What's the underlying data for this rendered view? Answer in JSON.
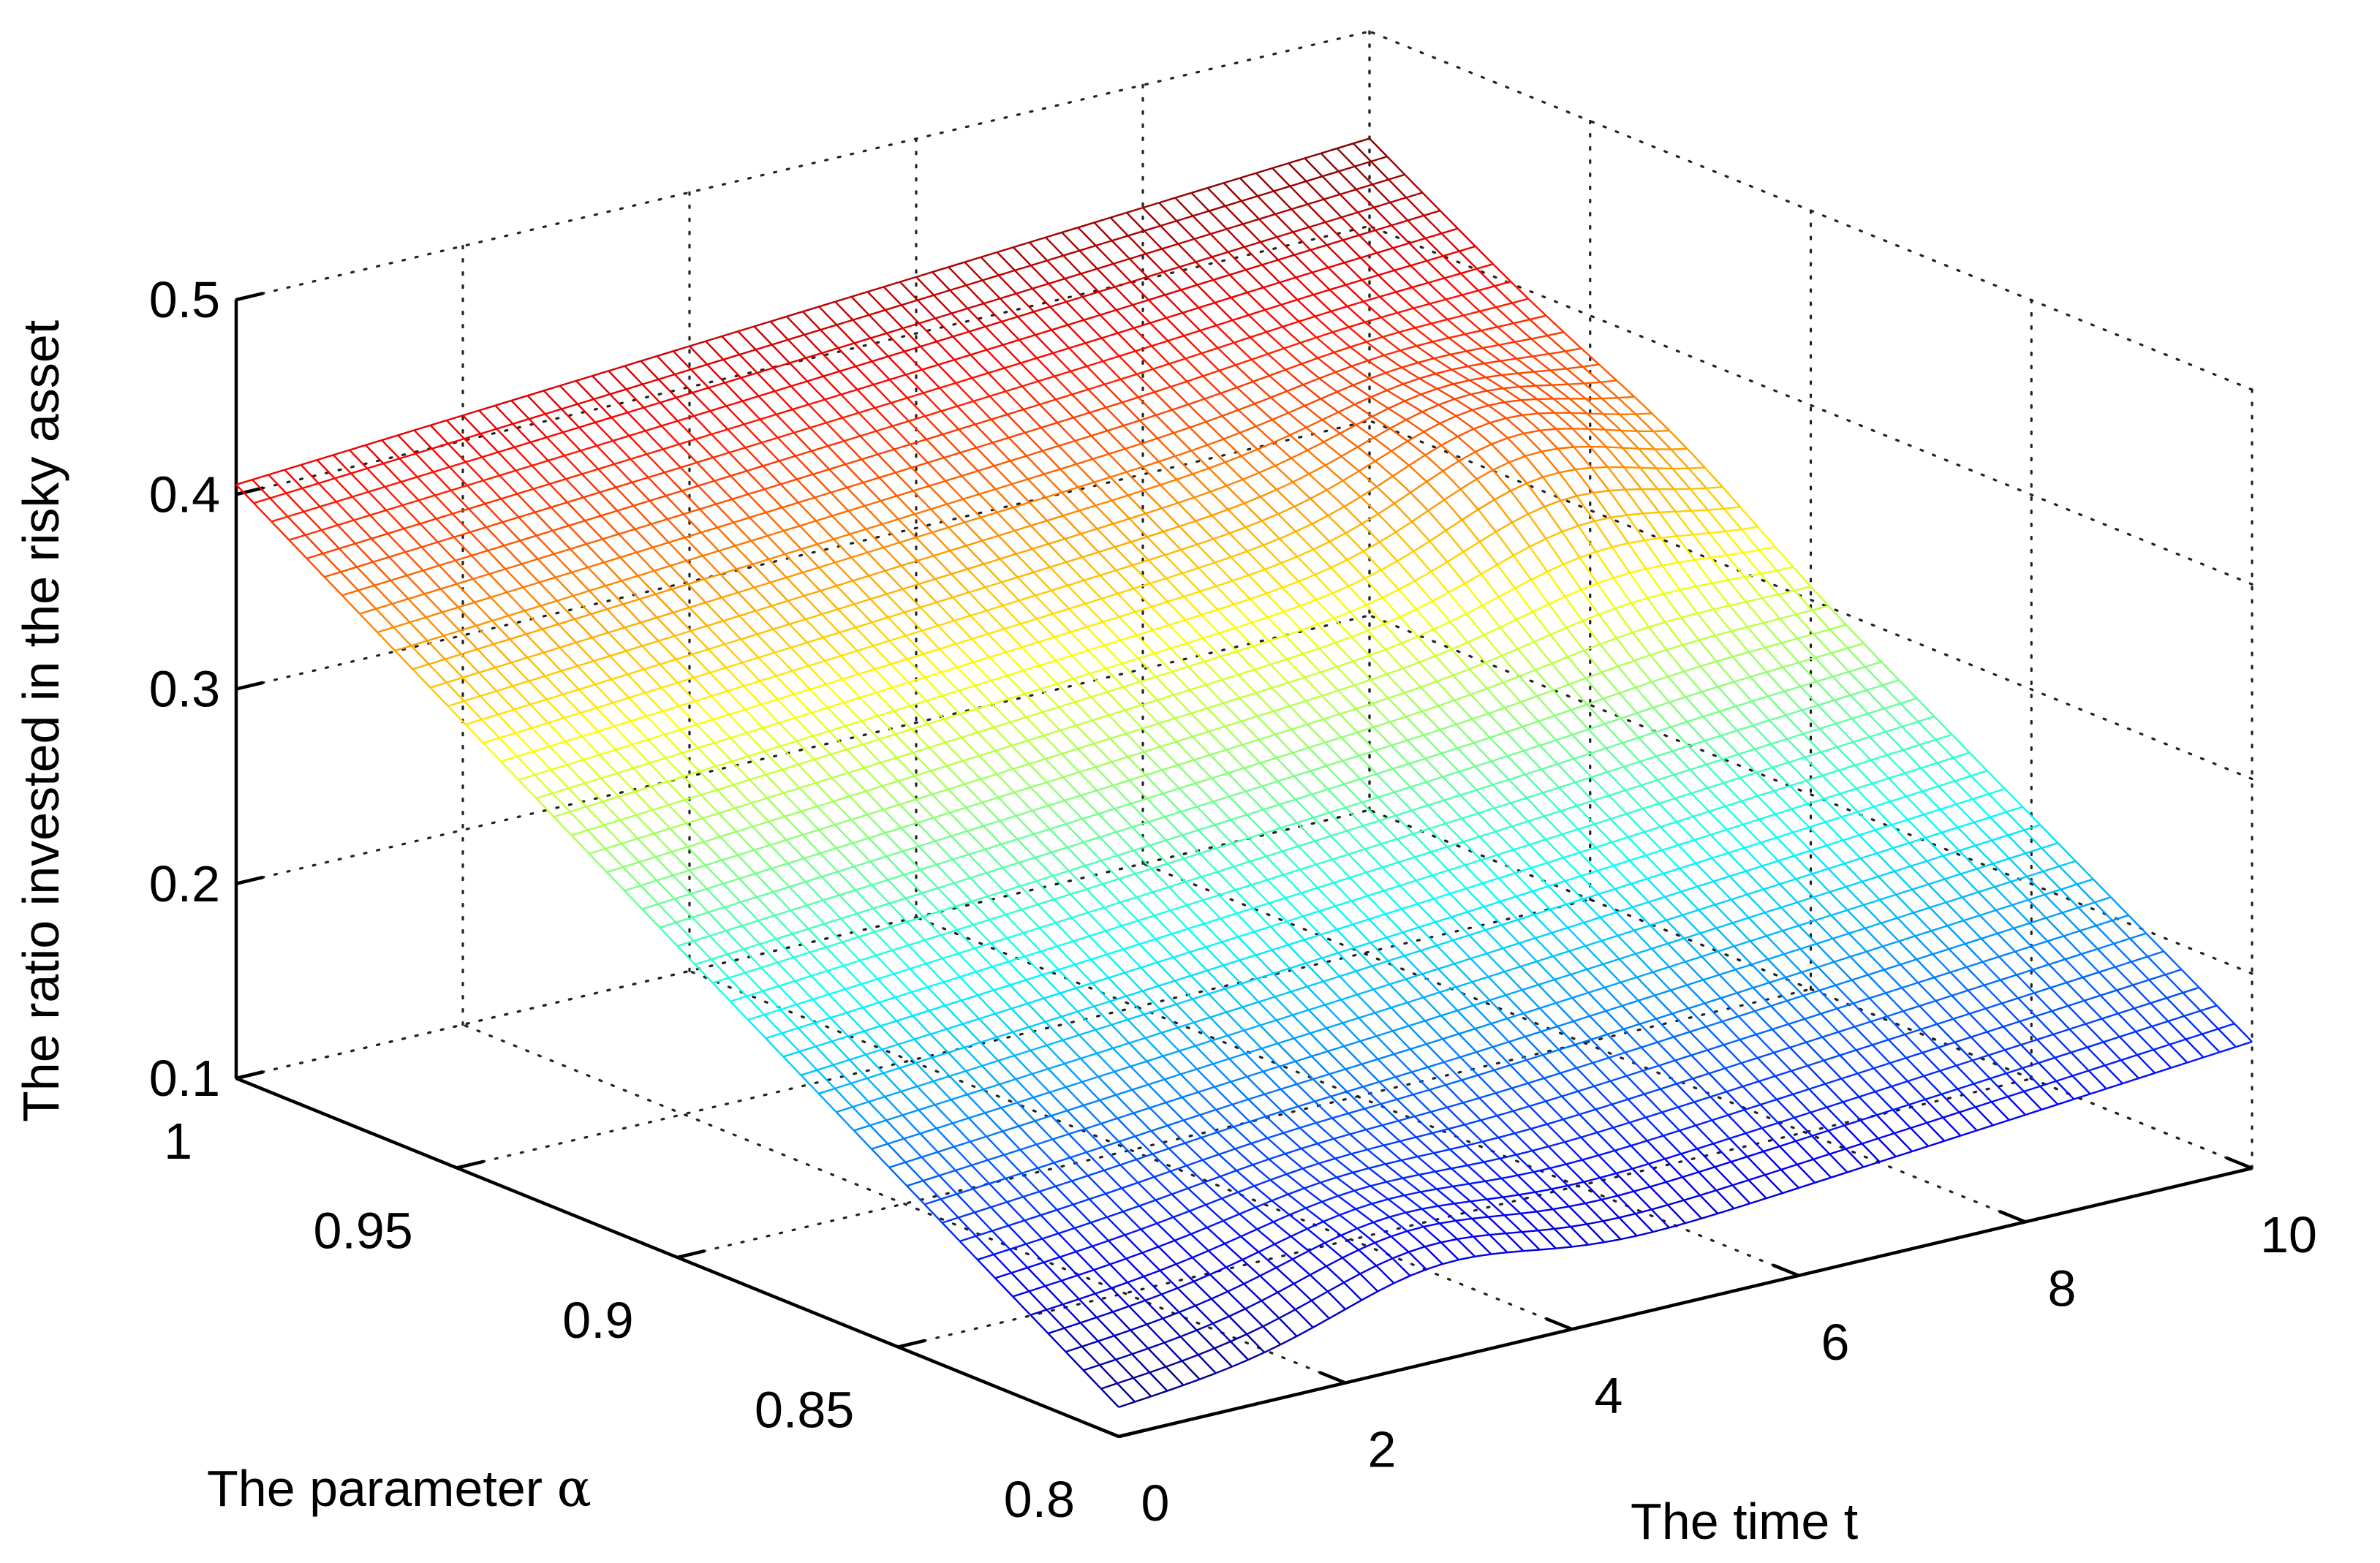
{
  "chart_data": {
    "type": "surface-mesh",
    "title": "",
    "xlabel": "The time t",
    "ylabel_prefix": "The parameter ",
    "ylabel_symbol": "α",
    "zlabel": "The ratio invested in the risky asset",
    "x_ticks": [
      "0",
      "2",
      "4",
      "6",
      "8",
      "10"
    ],
    "y_ticks": [
      "0.8",
      "0.85",
      "0.9",
      "0.95",
      "1"
    ],
    "z_ticks": [
      "0.1",
      "0.2",
      "0.3",
      "0.4",
      "0.5"
    ],
    "xlim": [
      0,
      10
    ],
    "ylim": [
      0.8,
      1
    ],
    "zlim": [
      0.1,
      0.5
    ],
    "grid": true,
    "colormap": "jet",
    "surface": {
      "t": [
        0,
        10
      ],
      "alpha": [
        0.8,
        1
      ],
      "corners": {
        "t0_alpha0.8": 0.115,
        "t10_alpha0.8": 0.165,
        "t0_alpha1": 0.405,
        "t10_alpha1": 0.445
      },
      "features": [
        {
          "near_t": 2.8,
          "near_alpha": 0.8,
          "bump_height": 0.02
        },
        {
          "near_t": 8.6,
          "near_alpha": 0.93,
          "bump_height": 0.03
        }
      ]
    }
  }
}
